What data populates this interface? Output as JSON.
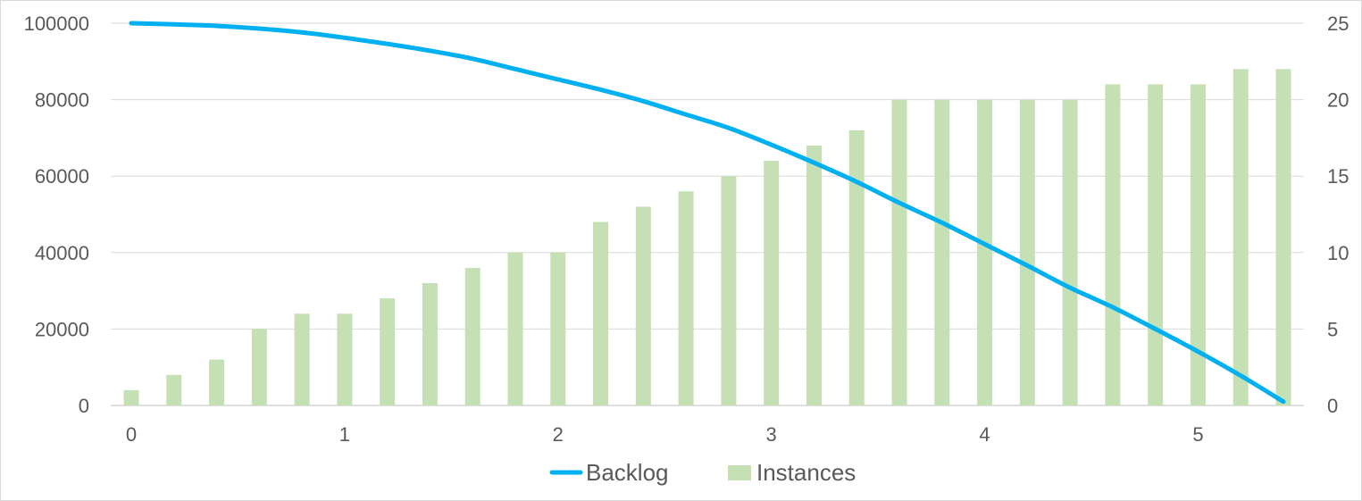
{
  "chart_data": {
    "type": "bar",
    "title": "",
    "xlabel": "",
    "ylabel": "",
    "grid": true,
    "legend_position": "bottom",
    "x": [
      0,
      0.2,
      0.4,
      0.6,
      0.8,
      1.0,
      1.2,
      1.4,
      1.6,
      1.8,
      2.0,
      2.2,
      2.4,
      2.6,
      2.8,
      3.0,
      3.2,
      3.4,
      3.6,
      3.8,
      4.0,
      4.2,
      4.4,
      4.6,
      4.8,
      5.0,
      5.2,
      5.4
    ],
    "x_ticks": [
      "0",
      "1",
      "2",
      "3",
      "4",
      "5"
    ],
    "y_left": {
      "lim": [
        0,
        100000
      ],
      "ticks": [
        "0",
        "20000",
        "40000",
        "60000",
        "80000",
        "100000"
      ]
    },
    "y_right": {
      "lim": [
        0,
        25
      ],
      "ticks": [
        "0",
        "5",
        "10",
        "15",
        "20",
        "25"
      ]
    },
    "series": [
      {
        "name": "Backlog",
        "type": "line",
        "axis": "left",
        "color": "#00b0f0",
        "values": [
          100000,
          99700,
          99300,
          98600,
          97600,
          96200,
          94600,
          92800,
          90700,
          88000,
          85300,
          82600,
          79600,
          76100,
          72600,
          68200,
          63500,
          58500,
          53000,
          47800,
          42200,
          36600,
          30800,
          25700,
          20000,
          14100,
          7800,
          1000
        ]
      },
      {
        "name": "Instances",
        "type": "bar",
        "axis": "right",
        "color": "#c5e0b4",
        "values": [
          1,
          2,
          3,
          5,
          6,
          6,
          7,
          8,
          9,
          10,
          10,
          12,
          13,
          14,
          15,
          16,
          17,
          18,
          20,
          20,
          20,
          20,
          20,
          21,
          21,
          21,
          22,
          22
        ]
      }
    ]
  }
}
